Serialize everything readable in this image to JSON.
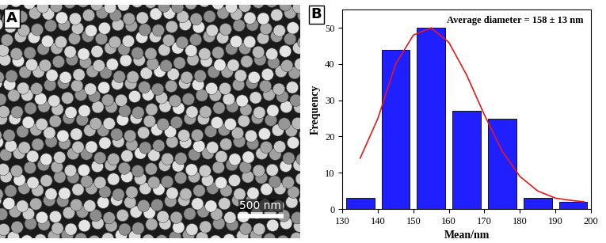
{
  "chart_data": [
    {
      "type": "image",
      "annotations": [
        "A",
        "500 nm"
      ]
    },
    {
      "type": "histogram",
      "annotations": [
        "B",
        "Average diameter = 158 ± 13 nm"
      ],
      "x_label": "Mean/nm",
      "y_label": "Frequency",
      "bins": [
        130,
        140,
        150,
        160,
        170,
        180,
        190,
        200
      ],
      "counts": [
        3,
        44,
        50,
        27,
        25,
        3,
        2
      ],
      "color": "#1f1fff",
      "series": [
        {
          "type": "line",
          "color": "#e41a1c",
          "x": [
            135,
            140,
            145,
            150,
            155,
            160,
            165,
            170,
            175,
            180,
            185,
            190,
            195,
            198
          ],
          "values": [
            14,
            25,
            40,
            48,
            50,
            46,
            37,
            26,
            16,
            9,
            5,
            3,
            2.3,
            2
          ]
        }
      ],
      "xlim": [
        130,
        200
      ],
      "xticks": [
        130,
        140,
        150,
        160,
        170,
        180,
        190,
        200
      ],
      "ylim": [
        0,
        55
      ],
      "yticks": [
        0,
        10,
        20,
        30,
        40,
        50
      ]
    }
  ]
}
